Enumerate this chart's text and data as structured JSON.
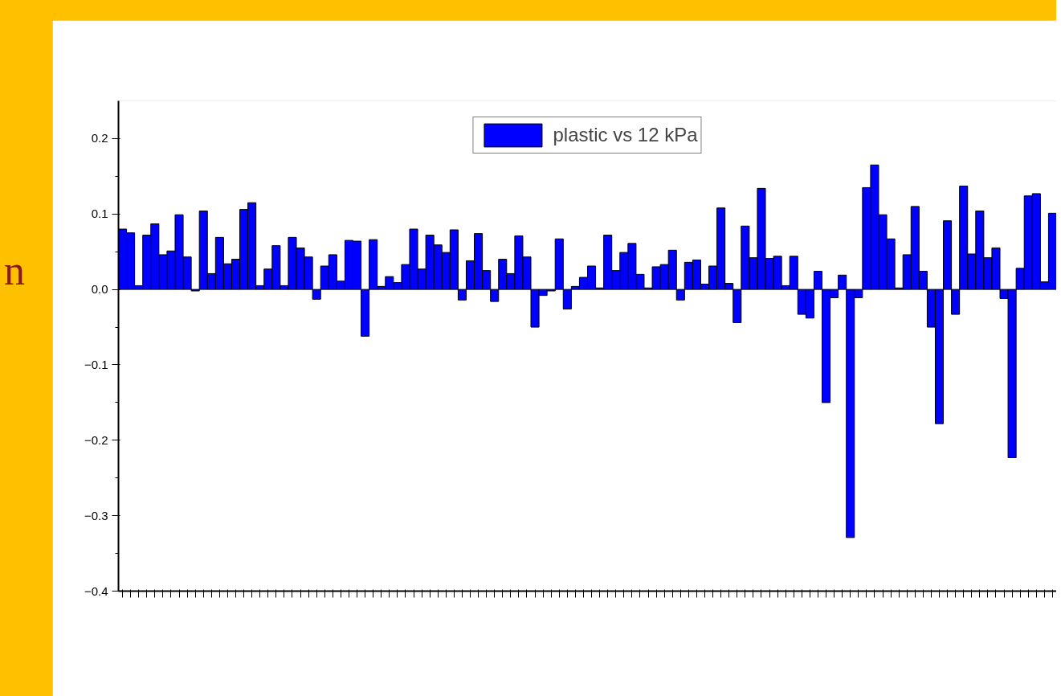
{
  "chart_data": {
    "type": "bar",
    "categories": [
      null,
      null,
      null,
      null,
      null,
      null,
      null,
      null,
      null,
      null,
      null,
      null,
      null,
      null,
      null,
      null,
      null,
      null,
      null,
      null,
      null,
      null,
      null,
      null,
      null,
      null,
      null,
      null,
      null,
      null,
      null,
      null,
      null,
      null,
      null,
      null,
      null,
      null,
      null,
      null,
      null,
      null,
      null,
      null,
      null,
      null,
      null,
      null,
      null,
      null,
      null,
      null,
      null,
      null,
      null,
      null,
      null,
      null,
      null,
      null,
      null,
      null,
      null,
      null,
      null,
      null,
      null,
      null,
      null,
      null,
      null,
      null,
      null,
      null,
      null,
      null,
      null,
      null,
      null,
      null,
      null,
      null,
      null,
      null,
      null,
      null,
      null,
      null,
      null,
      null,
      null,
      null,
      null,
      null,
      null,
      null,
      null,
      null,
      null,
      null,
      null,
      null,
      null,
      null,
      null,
      null,
      null,
      null,
      null,
      null,
      null,
      null,
      null,
      null,
      null,
      null
    ],
    "series": [
      {
        "name": "plastic vs 12 kPa",
        "color": "#0000ff",
        "values": [
          0.08,
          0.075,
          0.005,
          0.072,
          0.087,
          0.046,
          0.051,
          0.099,
          0.043,
          -0.002,
          0.104,
          0.021,
          0.069,
          0.034,
          0.04,
          0.106,
          0.115,
          0.005,
          0.027,
          0.058,
          0.005,
          0.069,
          0.055,
          0.043,
          -0.013,
          0.031,
          0.046,
          0.011,
          0.065,
          0.064,
          -0.062,
          0.066,
          0.004,
          0.017,
          0.009,
          0.033,
          0.08,
          0.027,
          0.072,
          0.059,
          0.049,
          0.079,
          -0.014,
          0.038,
          0.074,
          0.025,
          -0.016,
          0.04,
          0.021,
          0.071,
          0.043,
          -0.05,
          -0.008,
          -0.002,
          0.067,
          -0.026,
          0.004,
          0.016,
          0.031,
          0.002,
          0.072,
          0.025,
          0.049,
          0.061,
          0.02,
          0.002,
          0.03,
          0.033,
          0.052,
          -0.014,
          0.036,
          0.039,
          0.007,
          0.031,
          0.108,
          0.008,
          -0.044,
          0.084,
          0.042,
          0.134,
          0.041,
          0.044,
          0.005,
          0.044,
          -0.033,
          -0.038,
          0.024,
          -0.15,
          -0.011,
          0.019,
          -0.329,
          -0.011,
          0.135,
          0.165,
          0.099,
          0.067,
          0.002,
          0.046,
          0.11,
          0.024,
          -0.05,
          -0.178,
          0.091,
          -0.033,
          0.137,
          0.047,
          0.104,
          0.042,
          0.055,
          -0.012,
          -0.223,
          0.028,
          0.124,
          0.127,
          0.01,
          0.101
        ]
      }
    ],
    "ylim": [
      -0.4,
      0.25
    ],
    "yticks": [
      -0.4,
      -0.3,
      -0.2,
      -0.1,
      {
        "value": 0,
        "label": "0.0"
      },
      0.1,
      0.2
    ],
    "tick_labels": "y",
    "grid": false,
    "legend": "top",
    "annotations": [
      "n"
    ]
  }
}
